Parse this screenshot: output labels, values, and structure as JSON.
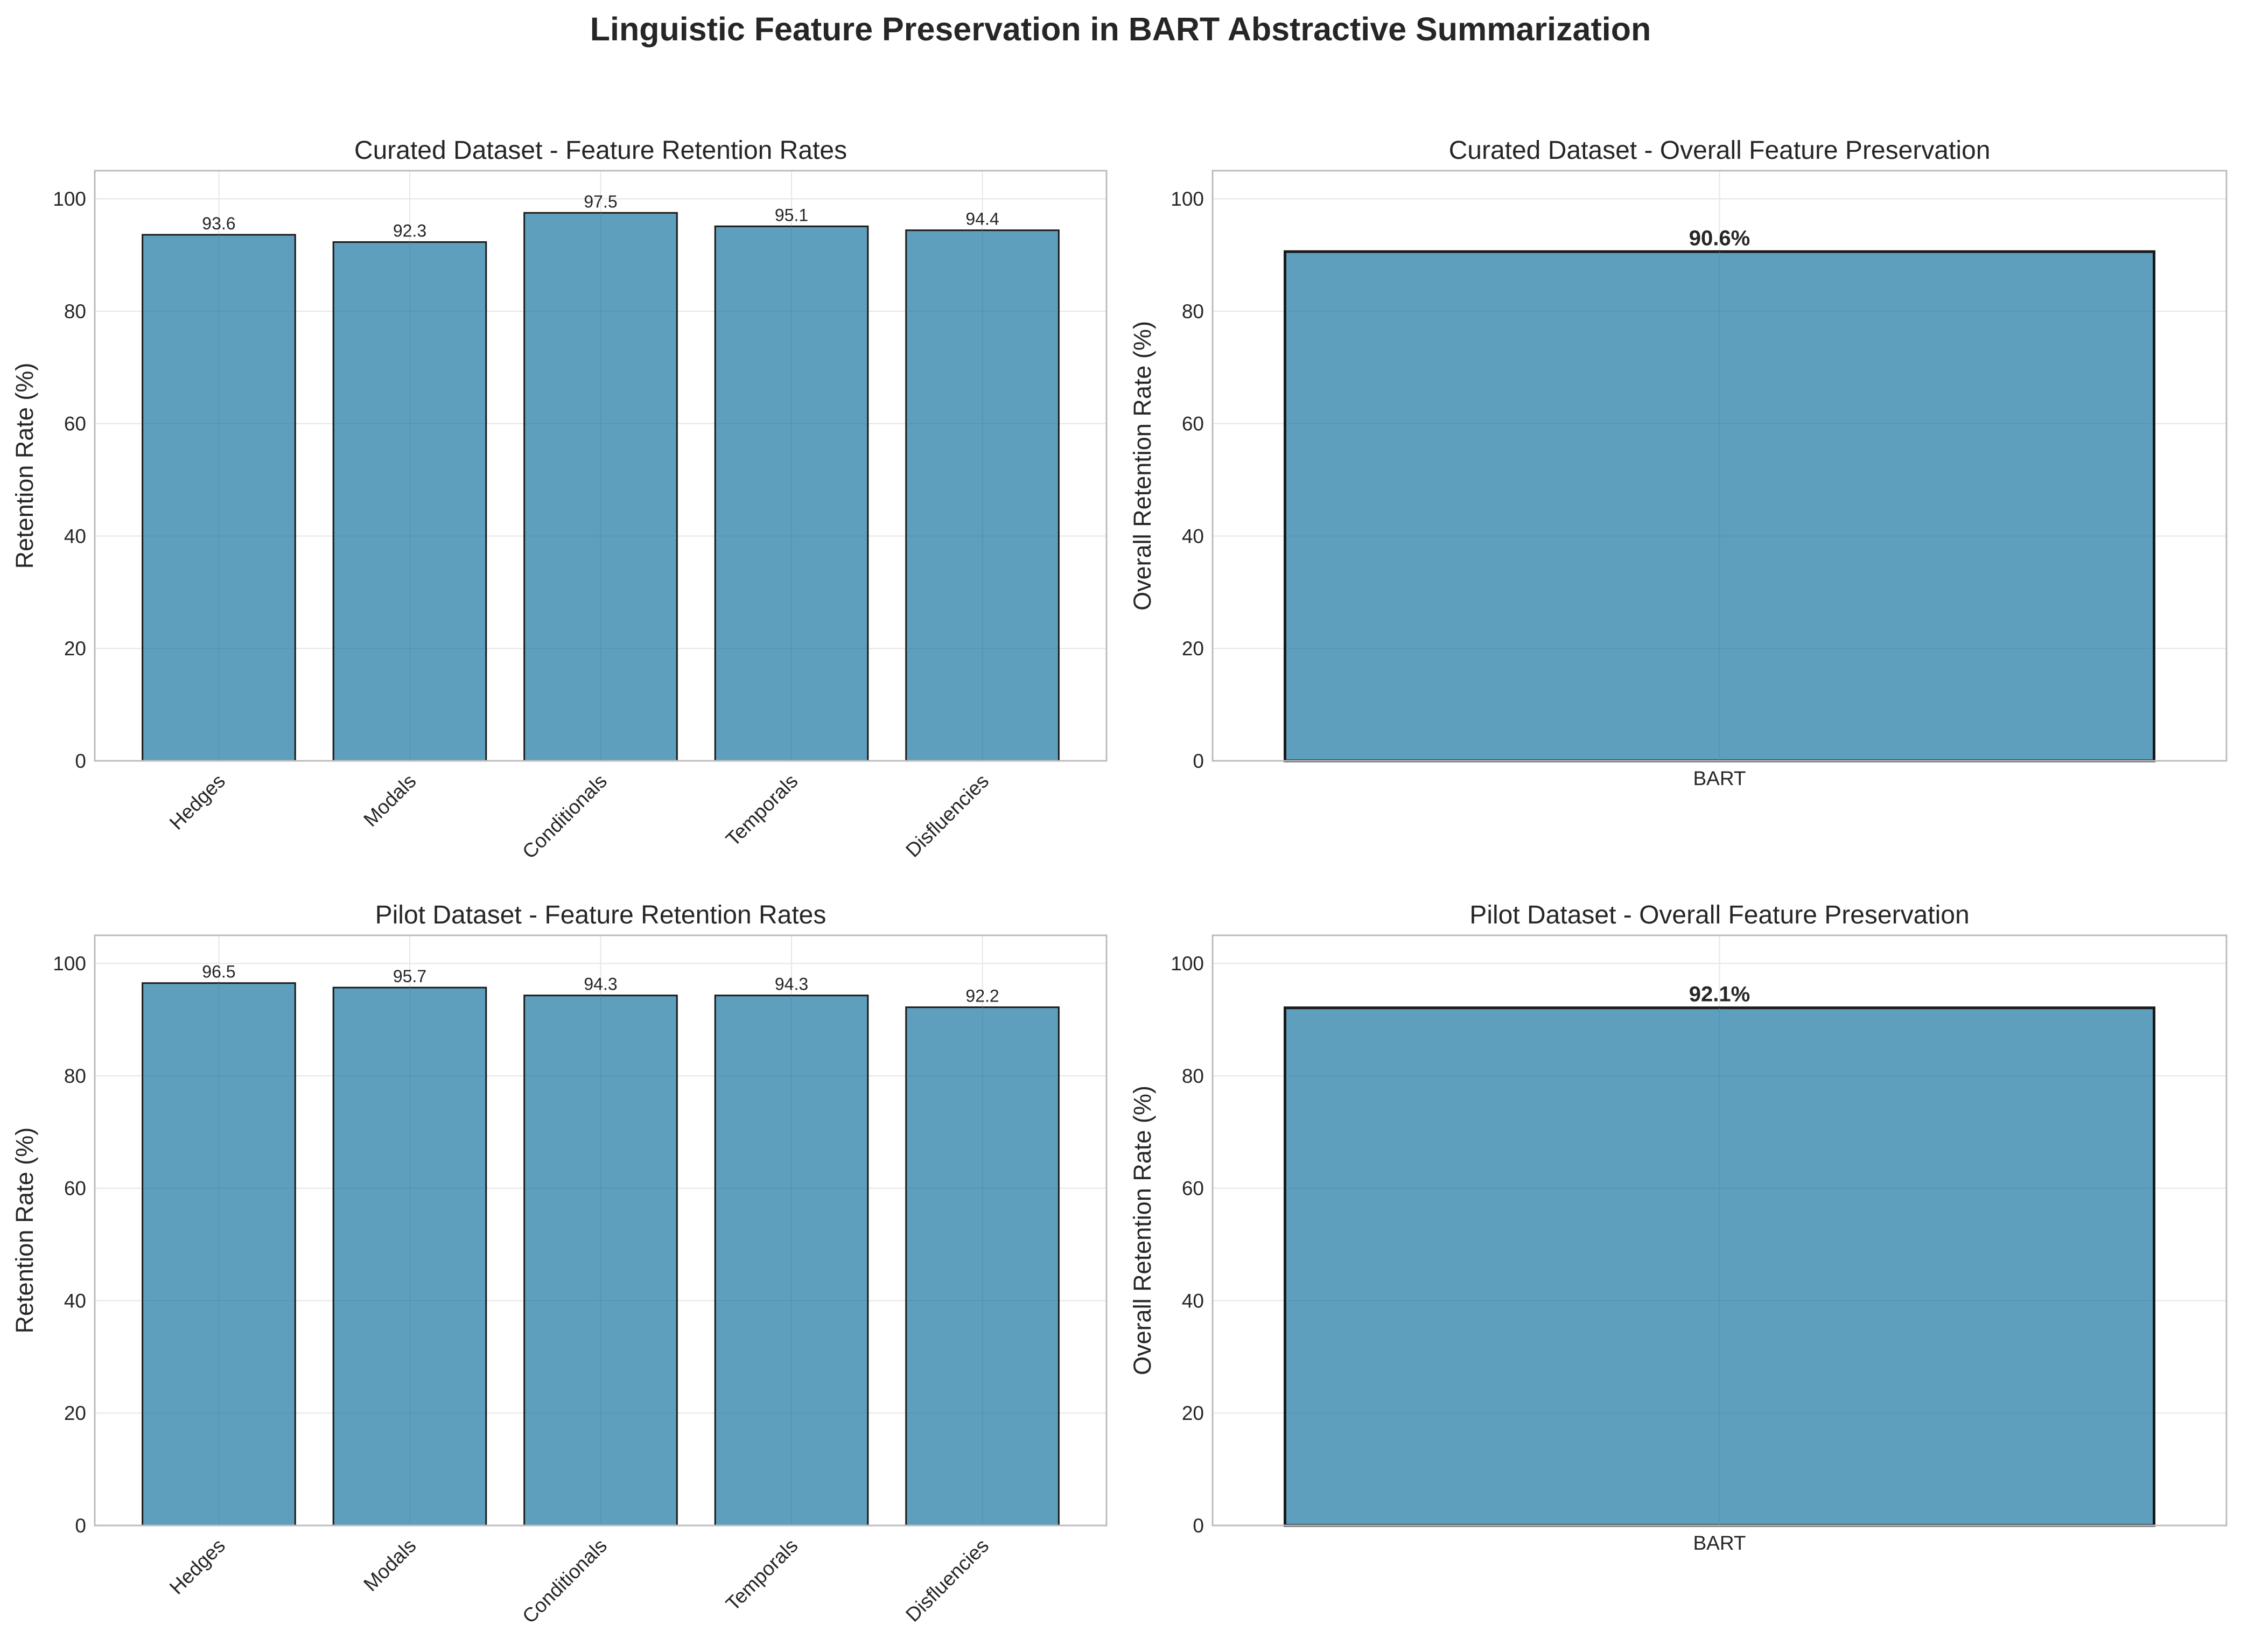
{
  "figure_title": "Linguistic Feature Preservation in BART Abstractive Summarization",
  "colors": {
    "bar": "#5a9cbc",
    "edge": "#1a1a1a",
    "grid": "#e6e6e6",
    "spine": "#bcbcbc"
  },
  "chart_data": [
    {
      "type": "bar",
      "title": "Curated Dataset - Feature Retention Rates",
      "xlabel": "",
      "ylabel": "Retention Rate (%)",
      "ylim": [
        0,
        105
      ],
      "yticks": [
        0,
        20,
        40,
        60,
        80,
        100
      ],
      "grid": true,
      "categories": [
        "Hedges",
        "Modals",
        "Conditionals",
        "Temporals",
        "Disfluencies"
      ],
      "values": [
        93.6,
        92.3,
        97.5,
        95.1,
        94.4
      ],
      "value_labels": [
        "93.6",
        "92.3",
        "97.5",
        "95.1",
        "94.4"
      ]
    },
    {
      "type": "bar",
      "title": "Curated Dataset - Overall Feature Preservation",
      "xlabel": "",
      "ylabel": "Overall Retention Rate (%)",
      "ylim": [
        0,
        105
      ],
      "yticks": [
        0,
        20,
        40,
        60,
        80,
        100
      ],
      "grid": true,
      "categories": [
        "BART"
      ],
      "values": [
        90.6
      ],
      "value_labels": [
        "90.6%"
      ]
    },
    {
      "type": "bar",
      "title": "Pilot Dataset - Feature Retention Rates",
      "xlabel": "",
      "ylabel": "Retention Rate (%)",
      "ylim": [
        0,
        105
      ],
      "yticks": [
        0,
        20,
        40,
        60,
        80,
        100
      ],
      "grid": true,
      "categories": [
        "Hedges",
        "Modals",
        "Conditionals",
        "Temporals",
        "Disfluencies"
      ],
      "values": [
        96.5,
        95.7,
        94.3,
        94.3,
        92.2
      ],
      "value_labels": [
        "96.5",
        "95.7",
        "94.3",
        "94.3",
        "92.2"
      ]
    },
    {
      "type": "bar",
      "title": "Pilot Dataset - Overall Feature Preservation",
      "xlabel": "",
      "ylabel": "Overall Retention Rate (%)",
      "ylim": [
        0,
        105
      ],
      "yticks": [
        0,
        20,
        40,
        60,
        80,
        100
      ],
      "grid": true,
      "categories": [
        "BART"
      ],
      "values": [
        92.1
      ],
      "value_labels": [
        "92.1%"
      ]
    }
  ]
}
